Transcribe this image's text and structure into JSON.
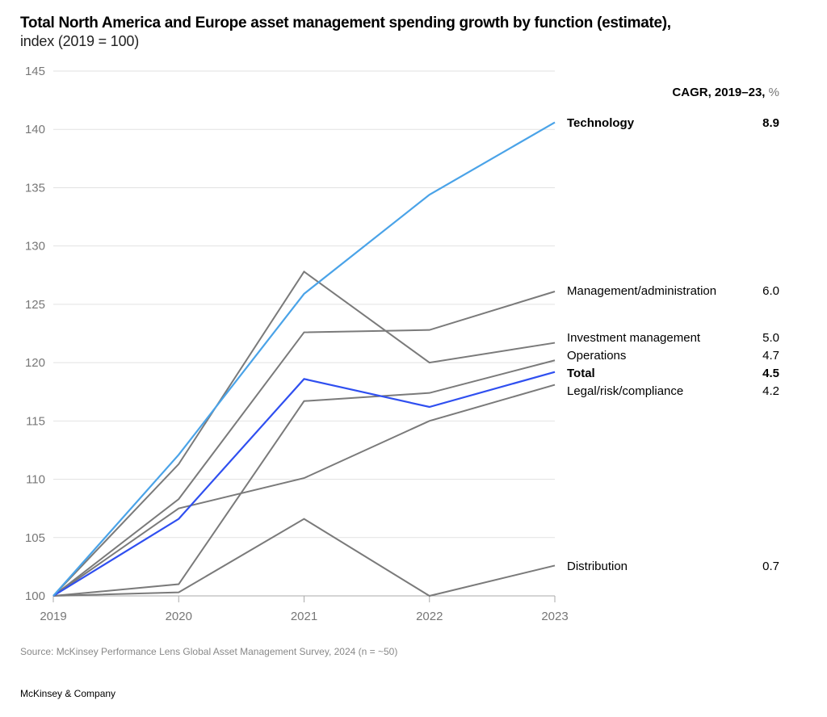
{
  "header": {
    "title": "Total North America and Europe asset management spending growth by function (estimate),",
    "subtitle": "index (2019 = 100)"
  },
  "footer": {
    "source": "Source: McKinsey Performance Lens Global Asset Management Survey, 2024 (n = ~50)",
    "brand": "McKinsey & Company"
  },
  "colors": {
    "technology": "#4aa3e8",
    "total": "#2f4ff0",
    "other": "#7a7a7a",
    "grid": "#e2e2e2",
    "axis": "#aaaaaa"
  },
  "chart_data": {
    "type": "line",
    "title": "Total North America and Europe asset management spending growth by function (estimate), index (2019 = 100)",
    "xlabel": "",
    "ylabel": "index (2019 = 100)",
    "x": [
      "2019",
      "2020",
      "2021",
      "2022",
      "2023"
    ],
    "ylim": [
      100,
      145
    ],
    "yticks": [
      100,
      105,
      110,
      115,
      120,
      125,
      130,
      135,
      140,
      145
    ],
    "grid": true,
    "legend_header": {
      "main": "CAGR, 2019–23,",
      "unit": " %"
    },
    "series": [
      {
        "name": "Technology",
        "cagr": "8.9",
        "bold": true,
        "color_key": "technology",
        "values": [
          100,
          112.1,
          125.9,
          134.4,
          140.6
        ]
      },
      {
        "name": "Management/administration",
        "cagr": "6.0",
        "bold": false,
        "color_key": "other",
        "values": [
          100,
          108.3,
          122.6,
          122.8,
          126.1
        ]
      },
      {
        "name": "Investment management",
        "cagr": "5.0",
        "bold": false,
        "color_key": "other",
        "values": [
          100,
          111.3,
          127.8,
          120.0,
          121.7
        ]
      },
      {
        "name": "Operations",
        "cagr": "4.7",
        "bold": false,
        "color_key": "other",
        "values": [
          100,
          101.0,
          116.7,
          117.4,
          120.2
        ]
      },
      {
        "name": "Total",
        "cagr": "4.5",
        "bold": true,
        "color_key": "total",
        "values": [
          100,
          106.6,
          118.6,
          116.2,
          119.2
        ]
      },
      {
        "name": "Legal/risk/compliance",
        "cagr": "4.2",
        "bold": false,
        "color_key": "other",
        "values": [
          100,
          107.5,
          110.1,
          115.0,
          118.1
        ]
      },
      {
        "name": "Distribution",
        "cagr": "0.7",
        "bold": false,
        "color_key": "other",
        "values": [
          100,
          100.3,
          106.6,
          100.0,
          102.6
        ]
      }
    ]
  }
}
